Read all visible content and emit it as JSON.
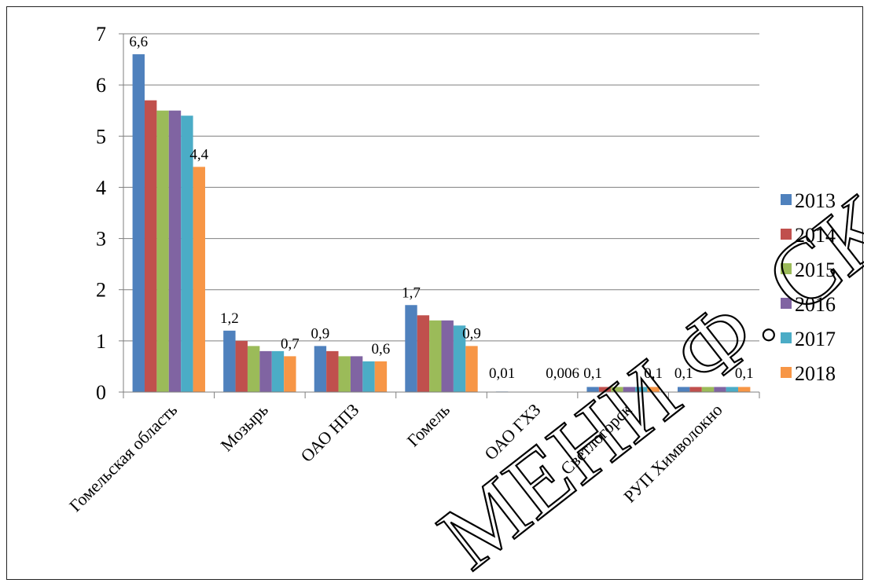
{
  "chart_data": {
    "type": "bar",
    "title": "",
    "xlabel": "",
    "ylabel": "",
    "ylim": [
      0,
      7
    ],
    "yticks": [
      0,
      1,
      2,
      3,
      4,
      5,
      6,
      7
    ],
    "grid": true,
    "legend_position": "right",
    "categories": [
      "Гомельская область",
      "Мозырь",
      "ОАО НПЗ",
      "Гомель",
      "ОАО ГХЗ",
      "Светлогорск",
      "РУП Химволокно"
    ],
    "series": [
      {
        "name": "2013",
        "color": "#4F81BD",
        "values": [
          6.6,
          1.2,
          0.9,
          1.7,
          0.01,
          0.1,
          0.1
        ]
      },
      {
        "name": "2014",
        "color": "#C0504D",
        "values": [
          5.7,
          1.0,
          0.8,
          1.5,
          0.006,
          0.1,
          0.1
        ]
      },
      {
        "name": "2015",
        "color": "#9BBB59",
        "values": [
          5.5,
          0.9,
          0.7,
          1.4,
          0.006,
          0.1,
          0.1
        ]
      },
      {
        "name": "2016",
        "color": "#8064A2",
        "values": [
          5.5,
          0.8,
          0.7,
          1.4,
          0.006,
          0.1,
          0.1
        ]
      },
      {
        "name": "2017",
        "color": "#4BACC6",
        "values": [
          5.4,
          0.8,
          0.6,
          1.3,
          0.006,
          0.1,
          0.1
        ]
      },
      {
        "name": "2018",
        "color": "#F79646",
        "values": [
          4.4,
          0.7,
          0.6,
          0.9,
          0.006,
          0.1,
          0.1
        ]
      }
    ],
    "data_labels": [
      {
        "category": 0,
        "series": 0,
        "text": "6,6"
      },
      {
        "category": 0,
        "series": 5,
        "text": "4,4"
      },
      {
        "category": 1,
        "series": 0,
        "text": "1,2"
      },
      {
        "category": 1,
        "series": 5,
        "text": "0,7"
      },
      {
        "category": 2,
        "series": 0,
        "text": "0,9"
      },
      {
        "category": 2,
        "series": 5,
        "text": "0,6"
      },
      {
        "category": 3,
        "series": 0,
        "text": "1,7"
      },
      {
        "category": 3,
        "series": 5,
        "text": "0,9"
      },
      {
        "category": 4,
        "series": 0,
        "text": "0,01"
      },
      {
        "category": 4,
        "series": 5,
        "text": "0,006"
      },
      {
        "category": 5,
        "series": 0,
        "text": "0,1"
      },
      {
        "category": 5,
        "series": 5,
        "text": "0,1"
      },
      {
        "category": 6,
        "series": 0,
        "text": "0,1"
      },
      {
        "category": 6,
        "series": 5,
        "text": "0,1"
      }
    ],
    "watermark": "МЕНИ Ф. СКОР"
  }
}
